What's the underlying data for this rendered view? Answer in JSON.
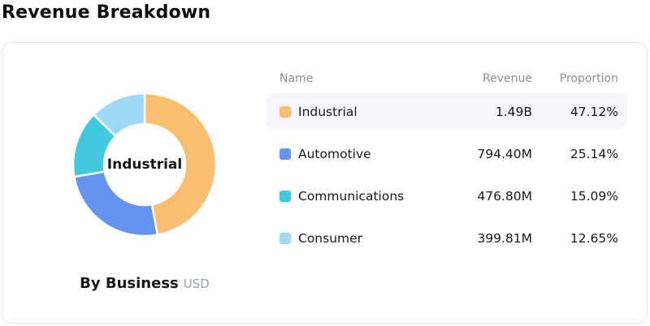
{
  "page": {
    "title": "Revenue Breakdown"
  },
  "donut": {
    "center_label": "Industrial",
    "caption_title": "By Business",
    "caption_unit": "USD"
  },
  "table": {
    "headers": [
      "Name",
      "Revenue",
      "Proportion"
    ],
    "rows": [
      {
        "name": "Industrial",
        "revenue": "1.49B",
        "proportion": "47.12%",
        "color": "#F9BE72",
        "highlighted": true
      },
      {
        "name": "Automotive",
        "revenue": "794.40M",
        "proportion": "25.14%",
        "color": "#6494F0",
        "highlighted": false
      },
      {
        "name": "Communications",
        "revenue": "476.80M",
        "proportion": "15.09%",
        "color": "#41C9DE",
        "highlighted": false
      },
      {
        "name": "Consumer",
        "revenue": "399.81M",
        "proportion": "12.65%",
        "color": "#A0D8F8",
        "highlighted": false
      }
    ]
  },
  "chart_data": {
    "type": "pie",
    "subtype": "donut",
    "title": "By Business",
    "unit": "USD",
    "center_label": "Industrial",
    "categories": [
      "Industrial",
      "Automotive",
      "Communications",
      "Consumer"
    ],
    "values": [
      47.12,
      25.14,
      15.09,
      12.65
    ],
    "revenue_labels": [
      "1.49B",
      "794.40M",
      "476.80M",
      "399.81M"
    ],
    "colors": [
      "#F9BE72",
      "#6494F0",
      "#41C9DE",
      "#A0D8F8"
    ],
    "start_angle_deg": -90,
    "direction": "clockwise",
    "inner_radius_ratio": 0.57,
    "legend_position": "right-table"
  }
}
